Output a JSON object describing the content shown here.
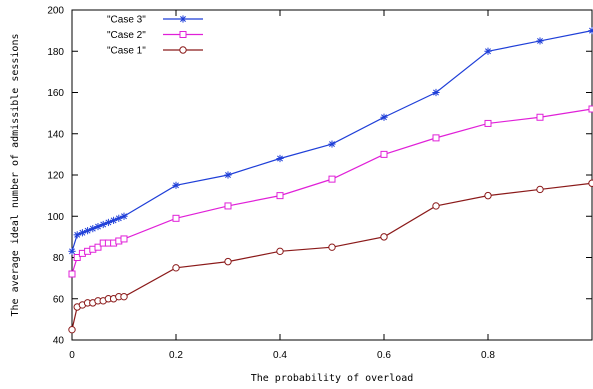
{
  "chart_data": {
    "type": "line",
    "xlabel": "The probability of overload",
    "ylabel": "The average ideal number of admissible sessions",
    "xlim": [
      0,
      1
    ],
    "ylim": [
      40,
      200
    ],
    "xticks": [
      0,
      0.2,
      0.4,
      0.6,
      0.8
    ],
    "x_tick_labels": [
      "0",
      "0.2",
      "0.4",
      "0.6",
      "0.8"
    ],
    "yticks": [
      40,
      60,
      80,
      100,
      120,
      140,
      160,
      180,
      200
    ],
    "y_tick_labels": [
      "40",
      "60",
      "80",
      "100",
      "120",
      "140",
      "160",
      "180",
      "200"
    ],
    "grid": false,
    "legend_position": "top-left",
    "x": [
      0,
      0.01,
      0.02,
      0.03,
      0.04,
      0.05,
      0.06,
      0.07,
      0.08,
      0.09,
      0.1,
      0.2,
      0.3,
      0.4,
      0.5,
      0.6,
      0.7,
      0.8,
      0.9,
      1.0
    ],
    "series": [
      {
        "name": "\"Case 3\"",
        "color": "#1f3fd8",
        "marker": "asterisk",
        "values": [
          83,
          91,
          92,
          93,
          94,
          95,
          96,
          97,
          98,
          99,
          100,
          115,
          120,
          128,
          135,
          148,
          160,
          180,
          185,
          190
        ]
      },
      {
        "name": "\"Case 2\"",
        "color": "#e020d8",
        "marker": "square",
        "values": [
          72,
          80,
          82,
          83,
          84,
          85,
          87,
          87,
          87,
          88,
          89,
          99,
          105,
          110,
          118,
          130,
          138,
          145,
          148,
          152
        ]
      },
      {
        "name": "\"Case 1\"",
        "color": "#8b1a1a",
        "marker": "circle",
        "values": [
          45,
          56,
          57,
          58,
          58,
          59,
          59,
          60,
          60,
          61,
          61,
          75,
          78,
          83,
          85,
          90,
          105,
          110,
          113,
          116
        ]
      }
    ]
  }
}
